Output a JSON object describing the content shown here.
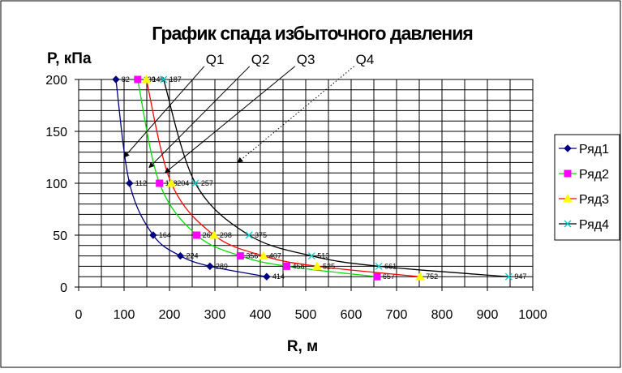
{
  "chart_data": {
    "type": "scatter",
    "title": "График спада избыточного давления",
    "xlabel": "R, м",
    "ylabel": "P, кПа",
    "xlim": [
      0,
      1000
    ],
    "ylim": [
      0,
      200
    ],
    "x_ticks": [
      "0",
      "100",
      "200",
      "300",
      "400",
      "500",
      "600",
      "700",
      "800",
      "900",
      "1000"
    ],
    "y_ticks": [
      "0",
      "50",
      "100",
      "150",
      "200"
    ],
    "grid": true,
    "legend_position": "right",
    "series": [
      {
        "name": "Ряд1",
        "color": "#000080",
        "line_color": "#000080",
        "marker": "diamond",
        "points": [
          {
            "x": 82,
            "y": 200,
            "label": "82"
          },
          {
            "x": 112,
            "y": 100,
            "label": "112"
          },
          {
            "x": 164,
            "y": 50,
            "label": "164"
          },
          {
            "x": 224,
            "y": 30,
            "label": "224"
          },
          {
            "x": 289,
            "y": 20,
            "label": "289"
          },
          {
            "x": 414,
            "y": 10,
            "label": "414"
          }
        ]
      },
      {
        "name": "Ряд2",
        "color": "#ff00ff",
        "line_color": "#00dd00",
        "marker": "square",
        "points": [
          {
            "x": 130,
            "y": 200,
            "label": "130"
          },
          {
            "x": 178,
            "y": 100,
            "label": "178"
          },
          {
            "x": 260,
            "y": 50,
            "label": "260"
          },
          {
            "x": 356,
            "y": 30,
            "label": "356"
          },
          {
            "x": 458,
            "y": 20,
            "label": "458"
          },
          {
            "x": 657,
            "y": 10,
            "label": "657"
          }
        ]
      },
      {
        "name": "Ряд3",
        "color": "#ffff00",
        "line_color": "#ff0000",
        "marker": "triangle",
        "points": [
          {
            "x": 149,
            "y": 200,
            "label": "149"
          },
          {
            "x": 204,
            "y": 100,
            "label": "204"
          },
          {
            "x": 298,
            "y": 50,
            "label": "298"
          },
          {
            "x": 407,
            "y": 30,
            "label": "407"
          },
          {
            "x": 525,
            "y": 20,
            "label": "525"
          },
          {
            "x": 752,
            "y": 10,
            "label": "752"
          }
        ]
      },
      {
        "name": "Ряд4",
        "color": "#00cccc",
        "line_color": "#000000",
        "marker": "x",
        "points": [
          {
            "x": 187,
            "y": 200,
            "label": "187"
          },
          {
            "x": 257,
            "y": 100,
            "label": "257"
          },
          {
            "x": 375,
            "y": 50,
            "label": "375"
          },
          {
            "x": 513,
            "y": 30,
            "label": "513"
          },
          {
            "x": 661,
            "y": 20,
            "label": "661"
          },
          {
            "x": 947,
            "y": 10,
            "label": "947"
          }
        ]
      }
    ],
    "annotations": [
      {
        "text": "Q1",
        "label_at": [
          280,
          215
        ],
        "arrow_to": [
          100,
          125
        ],
        "style": "solid"
      },
      {
        "text": "Q2",
        "label_at": [
          380,
          215
        ],
        "arrow_to": [
          155,
          115
        ],
        "style": "solid"
      },
      {
        "text": "Q3",
        "label_at": [
          480,
          215
        ],
        "arrow_to": [
          190,
          110
        ],
        "style": "solid"
      },
      {
        "text": "Q4",
        "label_at": [
          610,
          215
        ],
        "arrow_to": [
          350,
          120
        ],
        "style": "dotted"
      }
    ]
  }
}
